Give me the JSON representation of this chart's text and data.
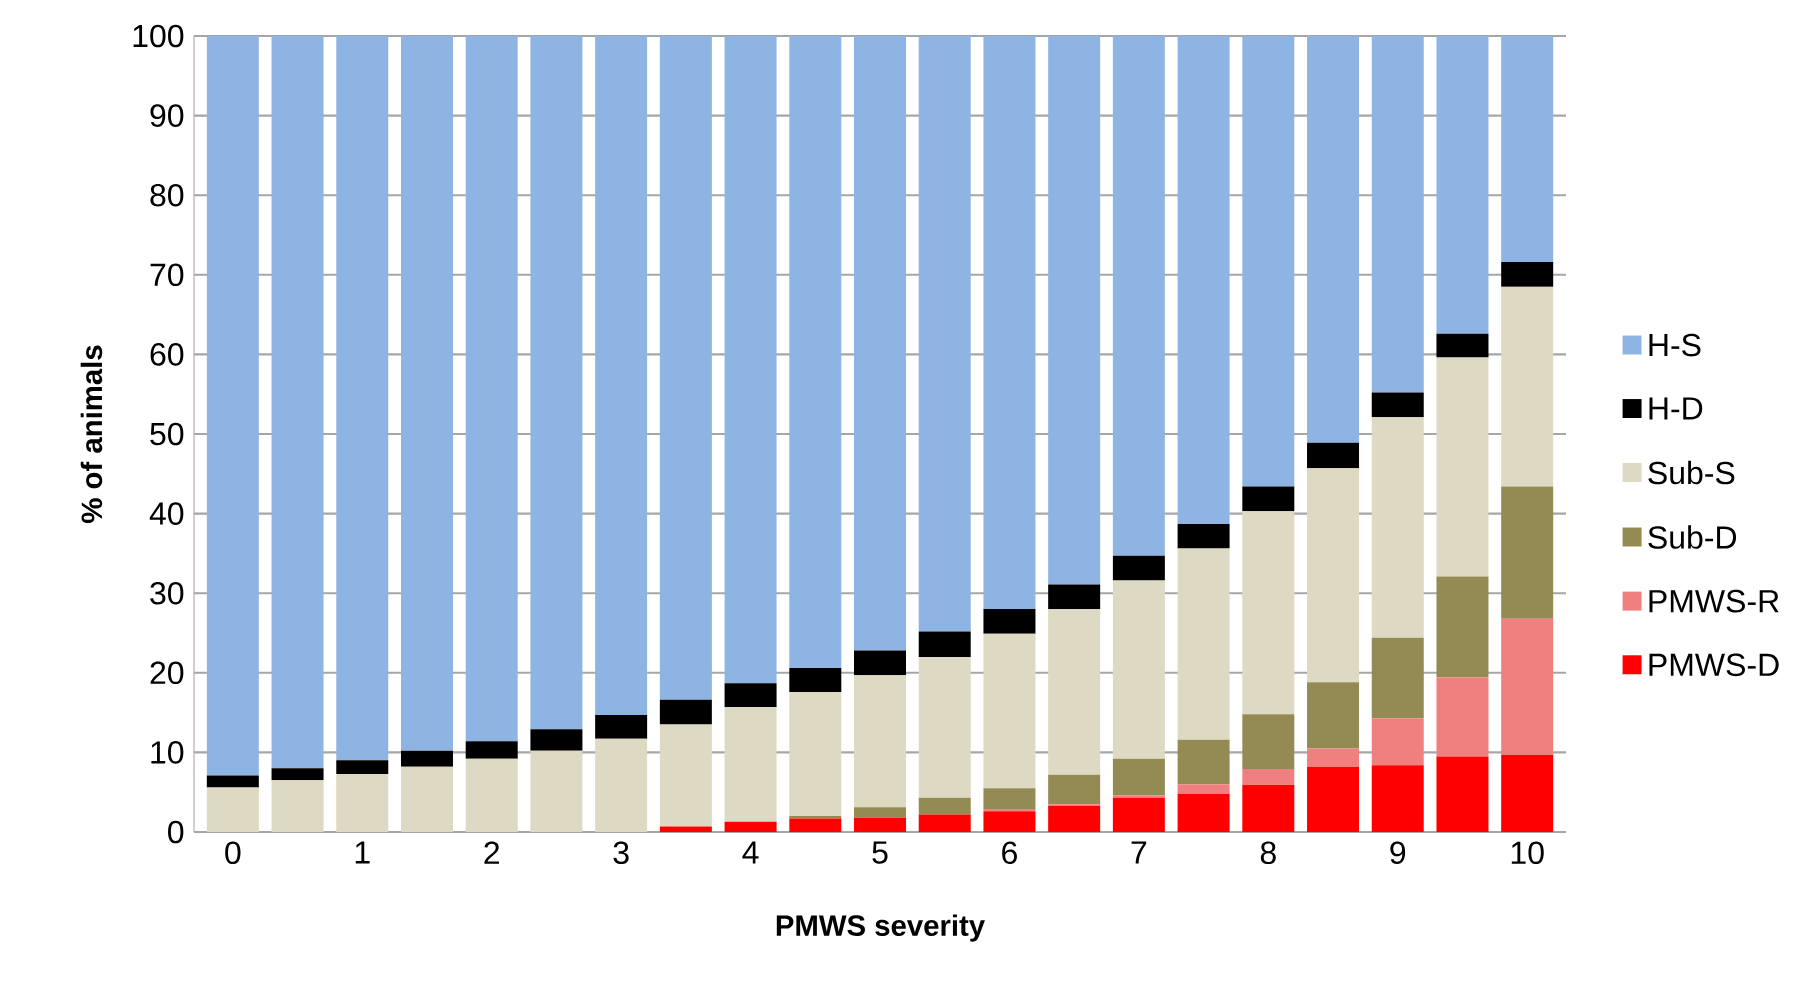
{
  "chart_data": {
    "type": "bar",
    "stacked": true,
    "xlabel": "PMWS severity",
    "ylabel": "% of animals",
    "categories": [
      "0",
      null,
      "1",
      null,
      "2",
      null,
      "3",
      null,
      "4",
      null,
      "5",
      null,
      "6",
      null,
      "7",
      null,
      "8",
      null,
      "9",
      null,
      "10"
    ],
    "ylim": [
      0,
      100
    ],
    "yticks": [
      0,
      10,
      20,
      30,
      40,
      50,
      60,
      70,
      80,
      90,
      100
    ],
    "grid": "y",
    "legend": "right",
    "series": [
      {
        "name": "PMWS-D",
        "color": "#ff0000",
        "values": [
          0,
          0,
          0,
          0,
          0,
          0,
          0,
          0.7,
          1.3,
          1.7,
          1.8,
          2.2,
          2.6,
          3.3,
          4.3,
          4.8,
          5.9,
          8.2,
          8.4,
          9.5,
          9.7
        ]
      },
      {
        "name": "PMWS-R",
        "color": "#f08080",
        "values": [
          0,
          0,
          0,
          0,
          0,
          0,
          0,
          0,
          0,
          0,
          0,
          0,
          0.3,
          0.2,
          0.3,
          1.2,
          2.0,
          2.3,
          5.9,
          9.9,
          17.1
        ]
      },
      {
        "name": "Sub-D",
        "color": "#948a54",
        "values": [
          0,
          0,
          0,
          0,
          0,
          0,
          0,
          0,
          0,
          0.3,
          1.3,
          2.1,
          2.6,
          3.7,
          4.6,
          5.6,
          6.9,
          8.3,
          10.1,
          12.7,
          16.6
        ]
      },
      {
        "name": "Sub-S",
        "color": "#ddd9c3",
        "values": [
          5.6,
          6.5,
          7.3,
          8.2,
          9.2,
          10.2,
          11.7,
          12.8,
          14.4,
          15.6,
          16.6,
          17.7,
          19.4,
          20.8,
          22.4,
          24.0,
          25.5,
          26.9,
          27.7,
          27.5,
          25.1
        ]
      },
      {
        "name": "H-D",
        "color": "#000000",
        "values": [
          1.5,
          1.5,
          1.7,
          2.0,
          2.2,
          2.7,
          3.0,
          3.1,
          3.0,
          3.0,
          3.1,
          3.2,
          3.1,
          3.1,
          3.1,
          3.1,
          3.1,
          3.2,
          3.1,
          3.0,
          3.1
        ]
      },
      {
        "name": "H-S",
        "color": "#8eb4e3",
        "values": [
          92.9,
          92.0,
          91.0,
          89.8,
          88.6,
          87.1,
          85.3,
          83.4,
          81.3,
          79.4,
          77.2,
          74.8,
          72.0,
          68.9,
          65.3,
          61.3,
          56.6,
          51.1,
          44.8,
          37.4,
          28.4
        ]
      }
    ]
  }
}
